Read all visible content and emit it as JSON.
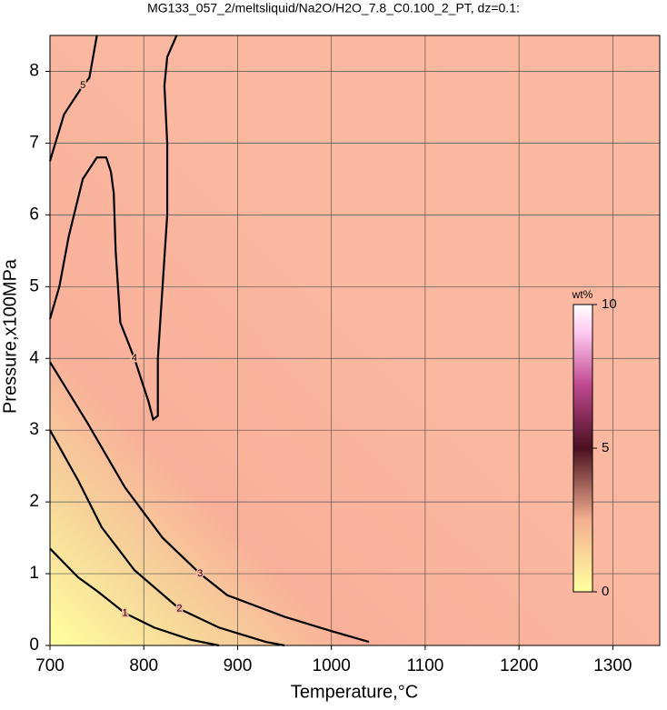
{
  "chart_data": {
    "type": "contour",
    "title": "MG133_057_2/meltsliquid/Na2O/H2O_7.8_C0.100_2_PT, dz=0.1:",
    "x_label": "Temperature,°C",
    "y_label": "Pressure,x100MPa",
    "xlim": [
      700,
      1350
    ],
    "ylim": [
      0,
      8.5
    ],
    "xticks": [
      700,
      800,
      900,
      1000,
      1100,
      1200,
      1300
    ],
    "yticks": [
      0,
      1,
      2,
      3,
      4,
      5,
      6,
      7,
      8
    ],
    "grid": true,
    "contours": [
      {
        "level": 1,
        "x": [
          700,
          730,
          751,
          780,
          811,
          850,
          880
        ],
        "y": [
          1.35,
          0.95,
          0.75,
          0.45,
          0.25,
          0.08,
          0
        ]
      },
      {
        "level": 2,
        "x": [
          700,
          730,
          755,
          790,
          838,
          880,
          930,
          950
        ],
        "y": [
          3.0,
          2.3,
          1.65,
          1.05,
          0.51,
          0.25,
          0.05,
          0
        ]
      },
      {
        "level": 3,
        "x": [
          700,
          740,
          780,
          820,
          860,
          889,
          950,
          1000,
          1040
        ],
        "y": [
          3.95,
          3.1,
          2.2,
          1.5,
          1.0,
          0.7,
          0.4,
          0.2,
          0.05
        ]
      },
      {
        "level": 4,
        "x": [
          700,
          710,
          720,
          735,
          750,
          760,
          765,
          768,
          770,
          775,
          790,
          805,
          810,
          815,
          815,
          820,
          825,
          825,
          822,
          825,
          835
        ],
        "y": [
          4.55,
          5.0,
          5.7,
          6.5,
          6.8,
          6.8,
          6.6,
          6.3,
          5.5,
          4.5,
          4.0,
          3.4,
          3.15,
          3.2,
          4.0,
          5.0,
          6.0,
          7.0,
          7.8,
          8.2,
          8.5
        ]
      },
      {
        "level": 5,
        "x": [
          700,
          715,
          735,
          742,
          750
        ],
        "y": [
          6.75,
          7.4,
          7.8,
          7.91,
          8.5
        ]
      }
    ],
    "colorbar": {
      "label": "wt%",
      "lim": [
        0,
        10
      ],
      "ticks": [
        0,
        5,
        10
      ]
    }
  }
}
